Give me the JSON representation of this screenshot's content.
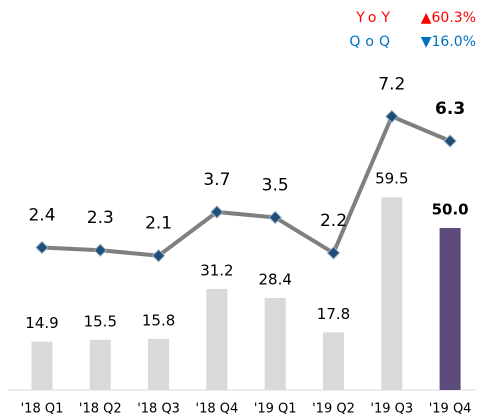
{
  "chart_data": {
    "type": "bar-line",
    "categories": [
      "'18 Q1",
      "'18 Q2",
      "'18 Q3",
      "'18 Q4",
      "'19 Q1",
      "'19 Q2",
      "'19 Q3",
      "'19 Q4"
    ],
    "series": [
      {
        "type": "bar",
        "values": [
          14.9,
          15.5,
          15.8,
          31.2,
          28.4,
          17.8,
          59.5,
          50.0
        ],
        "value_labels": [
          "14.9",
          "15.5",
          "15.8",
          "31.2",
          "28.4",
          "17.8",
          "59.5",
          "50.0"
        ],
        "colors": [
          "#d9d9d9",
          "#d9d9d9",
          "#d9d9d9",
          "#d9d9d9",
          "#d9d9d9",
          "#d9d9d9",
          "#d9d9d9",
          "#5e4b7e"
        ]
      },
      {
        "type": "line",
        "values": [
          2.4,
          2.3,
          2.1,
          3.7,
          3.5,
          2.2,
          7.2,
          6.3
        ],
        "color": "#7f7f7f",
        "marker_color": "#1f4e79"
      }
    ],
    "annotations": [
      {
        "label": "YoY",
        "value": "▲60.3%",
        "color": "#ff0000"
      },
      {
        "label": "QoQ",
        "value": "▼16.0%",
        "color": "#0070c0"
      }
    ]
  }
}
